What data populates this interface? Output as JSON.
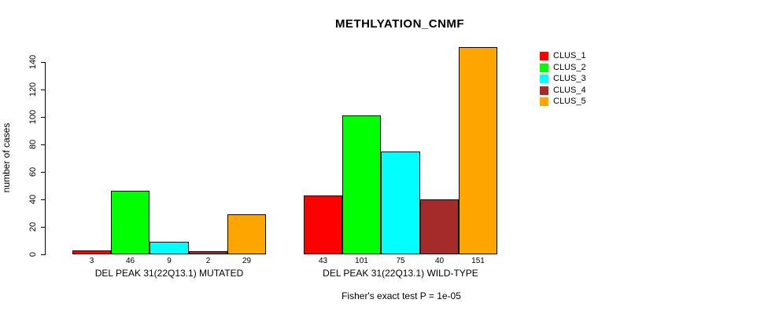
{
  "chart_data": {
    "type": "bar",
    "title": "METHLYATION_CNMF",
    "ylabel": "number of cases",
    "xlabel": "",
    "ylim": [
      0,
      151
    ],
    "yticks": [
      0,
      20,
      40,
      60,
      80,
      100,
      120,
      140
    ],
    "grid": false,
    "legend_position": "right",
    "series_names": [
      "CLUS_1",
      "CLUS_2",
      "CLUS_3",
      "CLUS_4",
      "CLUS_5"
    ],
    "colors": [
      "#FF0000",
      "#00FF00",
      "#00FFFF",
      "#A52A2A",
      "#FFA500"
    ],
    "groups": [
      {
        "label": "DEL PEAK 31(22Q13.1) MUTATED",
        "values": [
          3,
          46,
          9,
          2,
          29
        ]
      },
      {
        "label": "DEL PEAK 31(22Q13.1) WILD-TYPE",
        "values": [
          43,
          101,
          75,
          40,
          151
        ]
      }
    ],
    "annotation": "Fisher's exact test P = 1e-05"
  }
}
